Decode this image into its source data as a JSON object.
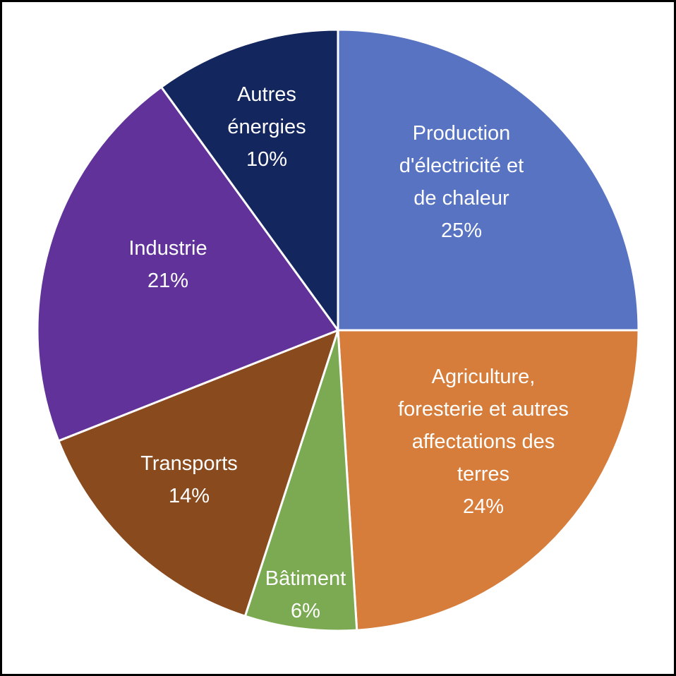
{
  "chart_data": {
    "type": "pie",
    "title": "",
    "slices": [
      {
        "label_lines": [
          "Production",
          "d'électricité et",
          "de chaleur"
        ],
        "value": 25,
        "value_label": "25%",
        "color": "#5773C1"
      },
      {
        "label_lines": [
          "Agriculture,",
          "foresterie et autres",
          "affectations des",
          "terres"
        ],
        "value": 24,
        "value_label": "24%",
        "color": "#D67D3B"
      },
      {
        "label_lines": [
          "Bâtiment"
        ],
        "value": 6,
        "value_label": "6%",
        "color": "#7BAA52"
      },
      {
        "label_lines": [
          "Transports"
        ],
        "value": 14,
        "value_label": "14%",
        "color": "#894A1E"
      },
      {
        "label_lines": [
          "Industrie"
        ],
        "value": 21,
        "value_label": "21%",
        "color": "#61329A"
      },
      {
        "label_lines": [
          "Autres",
          "énergies"
        ],
        "value": 10,
        "value_label": "10%",
        "color": "#14265E"
      }
    ],
    "start_angle_deg": 0,
    "direction": "clockwise"
  }
}
